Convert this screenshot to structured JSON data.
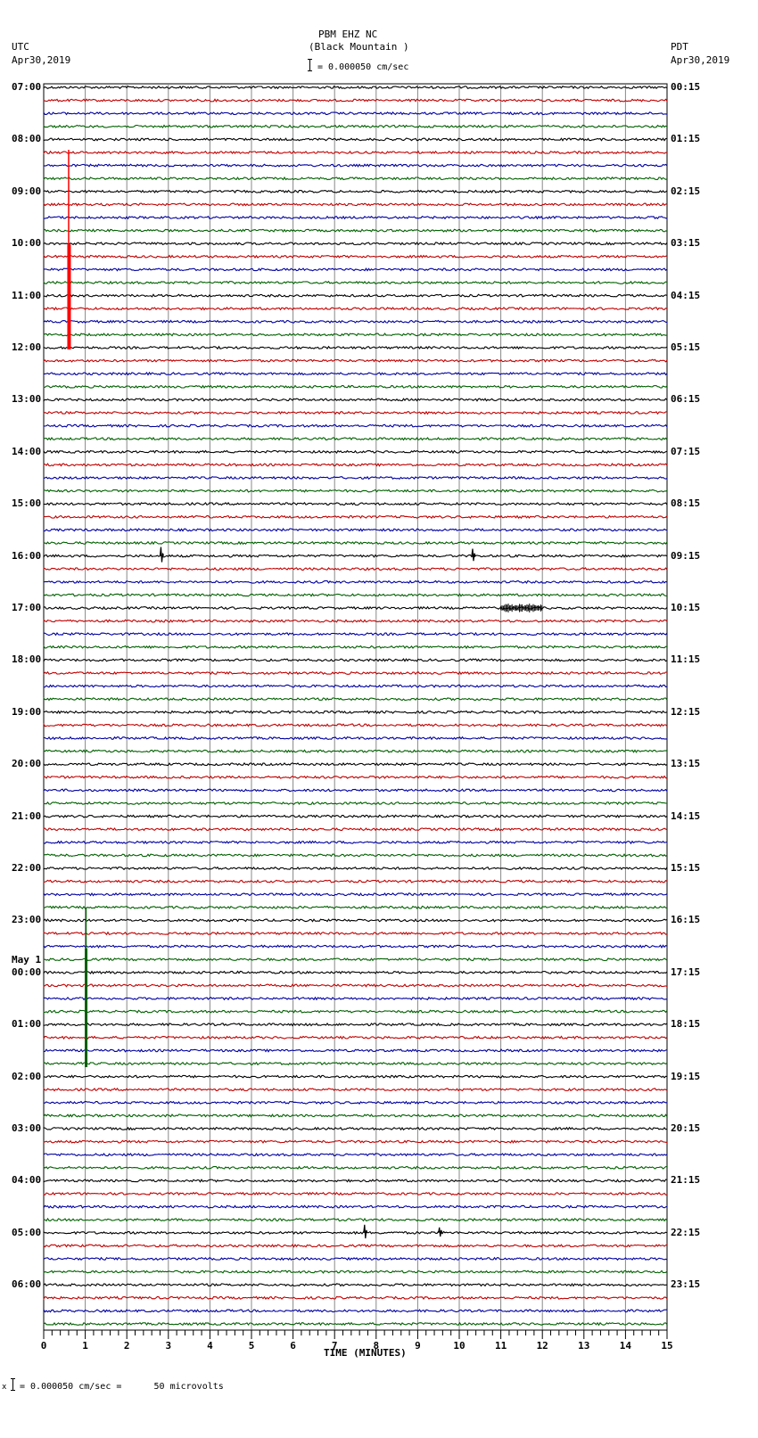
{
  "header": {
    "station": "PBM EHZ NC",
    "location": "(Black Mountain )",
    "scale_text": "= 0.000050 cm/sec",
    "left_tz": "UTC",
    "left_date": "Apr30,2019",
    "right_tz": "PDT",
    "right_date": "Apr30,2019"
  },
  "footer": {
    "scale_prefix": "x",
    "scale_text": "= 0.000050 cm/sec =      50 microvolts"
  },
  "chart_data": {
    "type": "line",
    "title": "PBM EHZ NC (Black Mountain )",
    "subtitle": "= 0.000050 cm/sec",
    "xlabel": "TIME (MINUTES)",
    "ylabel": "",
    "xlim": [
      0,
      15
    ],
    "x_ticks": [
      "0",
      "1",
      "2",
      "3",
      "4",
      "5",
      "6",
      "7",
      "8",
      "9",
      "10",
      "11",
      "12",
      "13",
      "14",
      "15"
    ],
    "minor_tick_step": 0.2,
    "grid": true,
    "trace_colors": [
      "#000000",
      "#c00000",
      "#0000a0",
      "#006000"
    ],
    "traces_per_hour": 4,
    "left_labels": [
      "07:00",
      "08:00",
      "09:00",
      "10:00",
      "11:00",
      "12:00",
      "13:00",
      "14:00",
      "15:00",
      "16:00",
      "17:00",
      "18:00",
      "19:00",
      "20:00",
      "21:00",
      "22:00",
      "23:00",
      "May 1\n00:00",
      "01:00",
      "02:00",
      "03:00",
      "04:00",
      "05:00",
      "06:00"
    ],
    "right_labels": [
      "00:15",
      "01:15",
      "02:15",
      "03:15",
      "04:15",
      "05:15",
      "06:15",
      "07:15",
      "08:15",
      "09:15",
      "10:15",
      "11:15",
      "12:15",
      "13:15",
      "14:15",
      "15:15",
      "16:15",
      "17:15",
      "18:15",
      "19:15",
      "20:15",
      "21:15",
      "22:15",
      "23:15"
    ],
    "events": [
      {
        "row_hour": "08:00",
        "trace": 1,
        "minute": 0.6,
        "color": "#ff0000",
        "desc": "thin red vertical line from 08:15 row to 10:00 row"
      },
      {
        "row_hour": "10:00",
        "trace": 0,
        "minute": 0.6,
        "color": "#ff0000",
        "desc": "thick red vertical band through 12:00 row"
      },
      {
        "row_hour": "22:00",
        "trace": 3,
        "minute": 1.05,
        "color": "#006000",
        "desc": "thin green vertical line to 23:30"
      },
      {
        "row_hour": "23:00",
        "trace": 2,
        "minute": 1.05,
        "color": "#006000",
        "desc": "thick green vertical band through 01:30 row"
      },
      {
        "row_hour": "16:00",
        "trace": 0,
        "minute": 2.8,
        "color": "#000000",
        "desc": "small spike"
      },
      {
        "row_hour": "16:00",
        "trace": 0,
        "minute": 10.3,
        "color": "#000000",
        "desc": "small spike"
      },
      {
        "row_hour": "17:00",
        "trace": 0,
        "minute": 11.4,
        "color": "#000000",
        "desc": "burst of activity 11.0-12.0"
      },
      {
        "row_hour": "05:00",
        "trace": 0,
        "minute": 7.7,
        "color": "#000000",
        "desc": "small spike"
      },
      {
        "row_hour": "05:00",
        "trace": 0,
        "minute": 9.5,
        "color": "#000000",
        "desc": "small spike"
      }
    ]
  }
}
